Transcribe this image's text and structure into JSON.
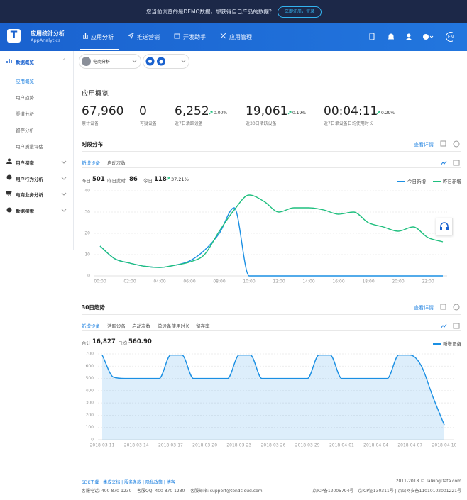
{
  "banner": {
    "text": "您当前浏览的是DEMO数据，想获得自己产品的数据？",
    "button": "立即注册，登录"
  },
  "nav": {
    "logo": "T",
    "title": "应用统计分析",
    "subtitle": "AppAnalytics",
    "tabs": [
      "应用分析",
      "推送营销",
      "开发助手",
      "应用管理"
    ],
    "lang": "EN"
  },
  "sidebar": {
    "section": "数据概览",
    "items": [
      "应用概览",
      "用户趋势",
      "渠道分析",
      "留存分析",
      "用户质量评估"
    ],
    "groups": [
      "用户探索",
      "用户行为分析",
      "电商业务分析",
      "数据探索"
    ]
  },
  "selector": {
    "app": "电商分析"
  },
  "overview": {
    "title": "应用概览",
    "stats": [
      {
        "value": "67,960",
        "label": "累计设备"
      },
      {
        "value": "0",
        "label": "可疑设备"
      },
      {
        "value": "6,252",
        "change": "0.00%",
        "label": "近7日活跃设备"
      },
      {
        "value": "19,061",
        "change": "0.19%",
        "label": "近30日活跃设备"
      },
      {
        "value": "00:04:11",
        "change": "0.29%",
        "label": "近7日单设备日均使用时长"
      }
    ]
  },
  "panels": [
    {
      "title": "时段分布",
      "link": "查看详情",
      "tabs": [
        "新增设备",
        "启动次数"
      ],
      "summary": [
        {
          "label": "昨日",
          "value": "501"
        },
        {
          "label": "昨日此时",
          "value": "86"
        },
        {
          "label": "今日",
          "value": "118",
          "change": "37.21%"
        }
      ]
    },
    {
      "title": "30日趋势",
      "link": "查看详情",
      "tabs": [
        "新增设备",
        "活跃设备",
        "启动次数",
        "单设备使用时长",
        "留存率"
      ],
      "summary": [
        {
          "label": "合计",
          "value": "16,827"
        },
        {
          "label": "日均",
          "value": "560.90"
        }
      ]
    }
  ],
  "chart_data": [
    {
      "type": "line",
      "categories": [
        "00:00",
        null,
        "02:00",
        null,
        "04:00",
        null,
        "06:00",
        null,
        "08:00",
        null,
        "10:00",
        null,
        "12:00",
        null,
        "14:00",
        null,
        "16:00",
        null,
        "18:00",
        null,
        "20:00",
        null,
        "22:00",
        null
      ],
      "series": [
        {
          "name": "今日新增",
          "color": "#1a8fe3",
          "values": [
            14,
            8,
            6,
            4.5,
            4,
            5,
            7,
            12,
            20,
            32,
            0,
            0,
            0,
            0,
            0,
            0,
            0,
            0,
            0,
            0,
            0,
            0,
            0,
            0
          ]
        },
        {
          "name": "昨日新增",
          "color": "#1fbf7e",
          "values": [
            14,
            8,
            6,
            4.5,
            4,
            5,
            6.5,
            10,
            21,
            31,
            38,
            35,
            30,
            32,
            32,
            31,
            29,
            30,
            25,
            23,
            21,
            23,
            18,
            16
          ]
        }
      ],
      "ylim": [
        0,
        40
      ],
      "yticks": [
        0,
        10,
        20,
        30,
        40
      ],
      "grid": true,
      "legend": "top-right"
    },
    {
      "type": "area",
      "categories": [
        "2018-03-11",
        null,
        null,
        "2018-03-14",
        null,
        null,
        "2018-03-17",
        null,
        null,
        "2018-03-20",
        null,
        null,
        "2018-03-23",
        null,
        null,
        "2018-03-26",
        null,
        null,
        "2018-03-29",
        null,
        null,
        "2018-04-01",
        null,
        null,
        "2018-04-04",
        null,
        null,
        "2018-04-07",
        null,
        null,
        "2018-04-10"
      ],
      "series": [
        {
          "name": "新增设备",
          "color": "#1a8fe3",
          "values": [
            690,
            510,
            500,
            500,
            500,
            500,
            690,
            690,
            500,
            500,
            500,
            500,
            690,
            690,
            500,
            500,
            500,
            500,
            500,
            690,
            690,
            500,
            500,
            500,
            500,
            500,
            690,
            690,
            600,
            350,
            120
          ]
        }
      ],
      "ylim": [
        0,
        700
      ],
      "yticks": [
        0,
        100,
        200,
        300,
        400,
        500,
        600,
        700
      ],
      "grid": true,
      "legend": "top-right"
    }
  ],
  "footer": {
    "links": [
      "SDK下载",
      "集成文档",
      "服务条款",
      "隐私政策",
      "博客"
    ],
    "contacts": [
      "客服电话: 400-870-1230",
      "客服QQ: 400 870 1230",
      "客服邮箱: support@tendcloud.com"
    ],
    "copyright": "2011-2018 © TalkingData.com",
    "icp": "京ICP备12005794号 | 京ICP证130311号 | 京公网安备11010102001221号"
  }
}
